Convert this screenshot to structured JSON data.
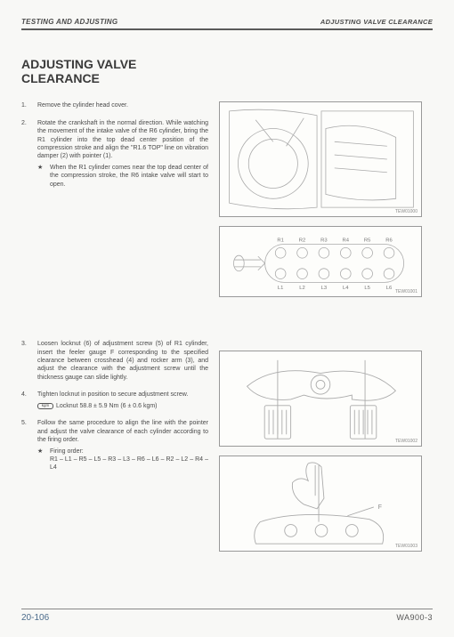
{
  "header": {
    "left": "TESTING AND ADJUSTING",
    "right": "ADJUSTING VALVE CLEARANCE"
  },
  "title_line1": "ADJUSTING VALVE",
  "title_line2": "CLEARANCE",
  "steps": {
    "s1": {
      "num": "1.",
      "text": "Remove the cylinder head cover."
    },
    "s2": {
      "num": "2.",
      "text": "Rotate the crankshaft in the normal direction. While watching the movement of the intake valve of the R6 cylinder, bring the R1 cylinder into the top dead center position of the compression stroke and align the \"R1.6 TOP\" line on vibration damper (2) with pointer (1).",
      "sub_bullet": "★",
      "sub_text": "When the R1 cylinder comes near the top dead center of the compression stroke, the R6 intake valve will start to open."
    },
    "s3": {
      "num": "3.",
      "text": "Loosen locknut (6) of adjustment screw (5) of R1 cylinder, insert the feeler gauge F corresponding to the specified clearance between crosshead (4) and rocker arm (3), and adjust the clearance with the adjustment screw until the thickness gauge can slide lightly."
    },
    "s4": {
      "num": "4.",
      "text": "Tighten locknut in position to secure adjustment screw.",
      "torque_icon": "kgm",
      "torque_text": "Locknut 58.8 ± 5.9 Nm (6 ± 0.6 kgm)"
    },
    "s5": {
      "num": "5.",
      "text": "Follow the same procedure to align the line with the pointer and adjust the valve clearance of each cylinder according to the firing order.",
      "sub_bullet": "★",
      "sub_label": "Firing order:",
      "sub_text": "R1 – L1 – R5 – L5 – R3 – L3 – R6 – L6 – R2 – L2 – R4 – L4"
    }
  },
  "cylinder_labels": {
    "top": [
      "R1",
      "R2",
      "R3",
      "R4",
      "R5",
      "R6"
    ],
    "bottom": [
      "L1",
      "L2",
      "L3",
      "L4",
      "L5",
      "L6"
    ]
  },
  "fig_ids": {
    "f1": "TEW01000",
    "f2": "TEW01001",
    "f3": "TEW01002",
    "f4": "TEW01003"
  },
  "footer": {
    "page": "20-106",
    "model": "WA900-3"
  },
  "colors": {
    "text": "#4a4a4a",
    "border": "#999999",
    "rule": "#5a5a5a",
    "page_num": "#4a6a8a",
    "bg": "#f8f8f6"
  }
}
